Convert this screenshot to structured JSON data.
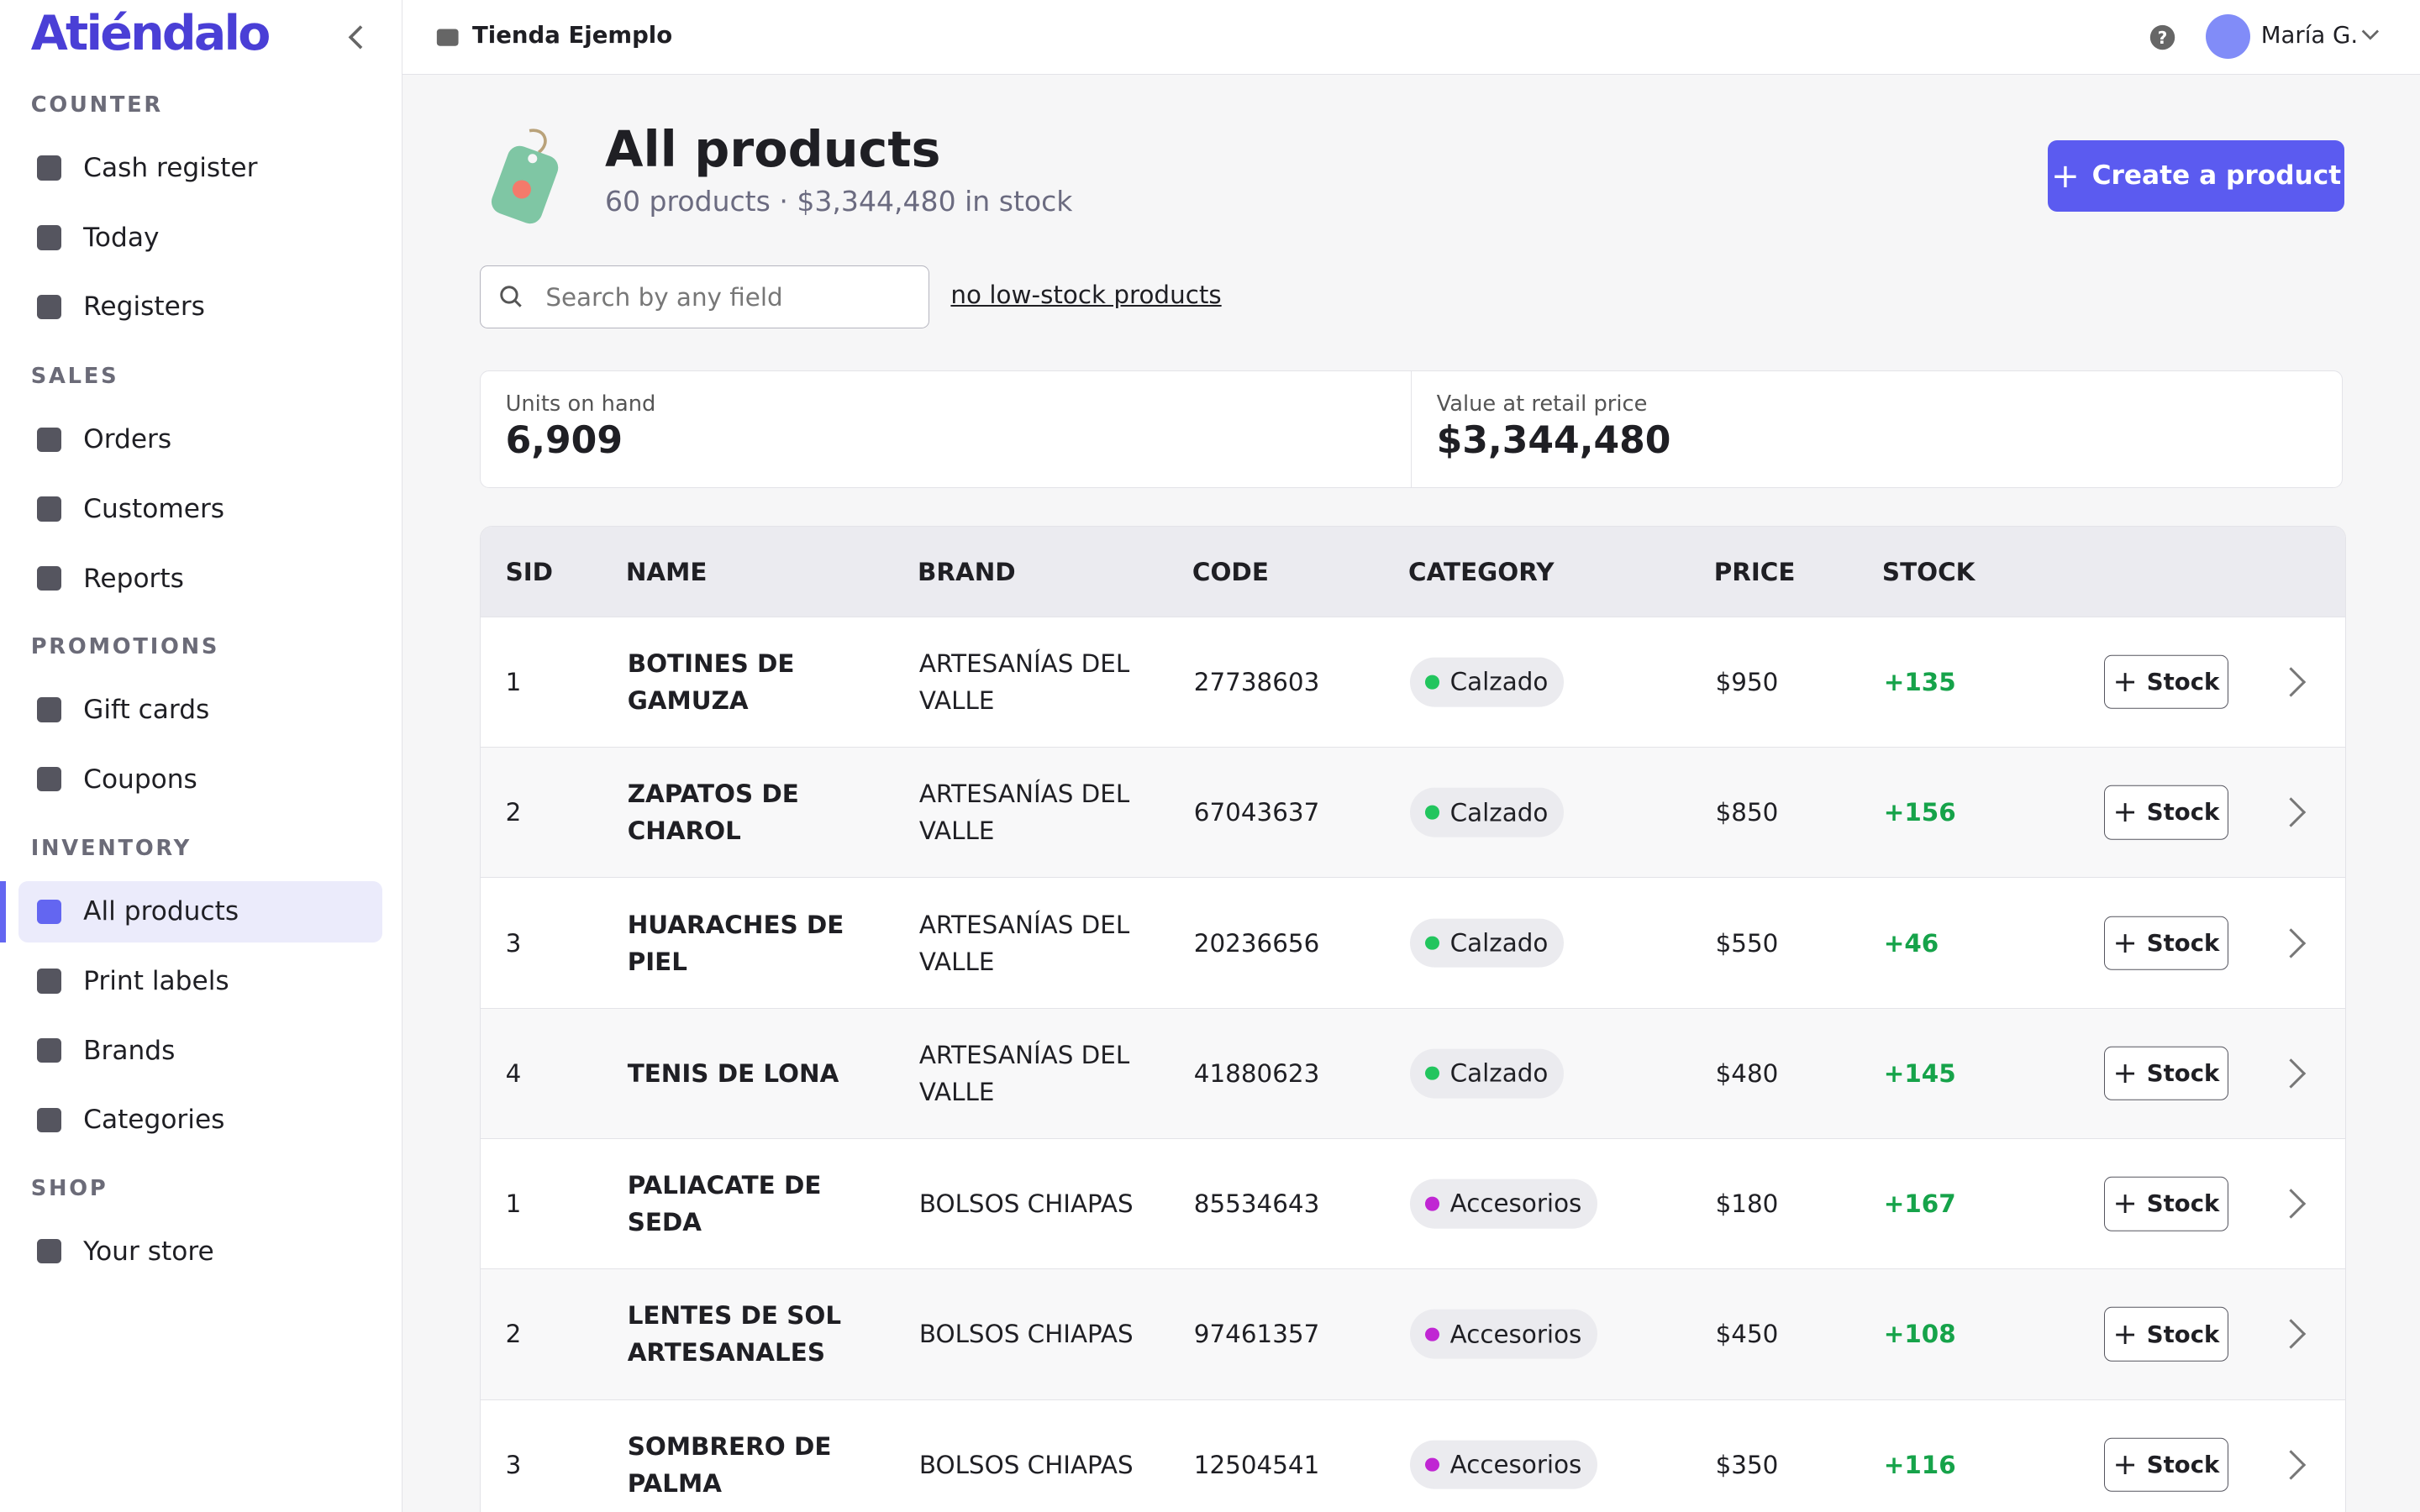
{
  "sidebar": {
    "logo": "Atiéndalo",
    "sections": [
      {
        "title": "COUNTER",
        "items": [
          "Cash register",
          "Today",
          "Registers"
        ]
      },
      {
        "title": "SALES",
        "items": [
          "Orders",
          "Customers",
          "Reports"
        ]
      },
      {
        "title": "PROMOTIONS",
        "items": [
          "Gift cards",
          "Coupons"
        ]
      },
      {
        "title": "INVENTORY",
        "items": [
          "All products",
          "Print labels",
          "Brands",
          "Categories"
        ]
      },
      {
        "title": "SHOP",
        "items": [
          "Your store"
        ]
      }
    ],
    "active": "All products"
  },
  "topbar": {
    "store": "Tienda Ejemplo",
    "user": "María G."
  },
  "header": {
    "title": "All products",
    "subtitle": "60 products · $3,344,480 in stock",
    "create_button": "Create a product"
  },
  "search": {
    "placeholder": "Search by any field",
    "link": "no low-stock products"
  },
  "stats": [
    {
      "label": "Units on hand",
      "value": "6,909"
    },
    {
      "label": "Value at retail price",
      "value": "$3,344,480"
    }
  ],
  "table": {
    "columns": [
      "SID",
      "NAME",
      "BRAND",
      "CODE",
      "CATEGORY",
      "PRICE",
      "STOCK"
    ],
    "row_action": "Stock",
    "rows": [
      [
        "1",
        "BOTINES DE GAMUZA",
        "ARTESANÍAS DEL VALLE",
        "27738603",
        "Calzado",
        "$950",
        "+135"
      ],
      [
        "2",
        "ZAPATOS DE CHAROL",
        "ARTESANÍAS DEL VALLE",
        "67043637",
        "Calzado",
        "$850",
        "+156"
      ],
      [
        "3",
        "HUARACHES DE PIEL",
        "ARTESANÍAS DEL VALLE",
        "20236656",
        "Calzado",
        "$550",
        "+46"
      ],
      [
        "4",
        "TENIS DE LONA",
        "ARTESANÍAS DEL VALLE",
        "41880623",
        "Calzado",
        "$480",
        "+145"
      ],
      [
        "1",
        "PALIACATE DE SEDA",
        "BOLSOS CHIAPAS",
        "85534643",
        "Accesorios",
        "$180",
        "+167"
      ],
      [
        "2",
        "LENTES DE SOL ARTESANALES",
        "BOLSOS CHIAPAS",
        "97461357",
        "Accesorios",
        "$450",
        "+108"
      ],
      [
        "3",
        "SOMBRERO DE PALMA",
        "BOLSOS CHIAPAS",
        "12504541",
        "Accesorios",
        "$350",
        "+116"
      ]
    ],
    "category_colors": {
      "Calzado": "#22c55e",
      "Accesorios": "#c026d3"
    }
  }
}
